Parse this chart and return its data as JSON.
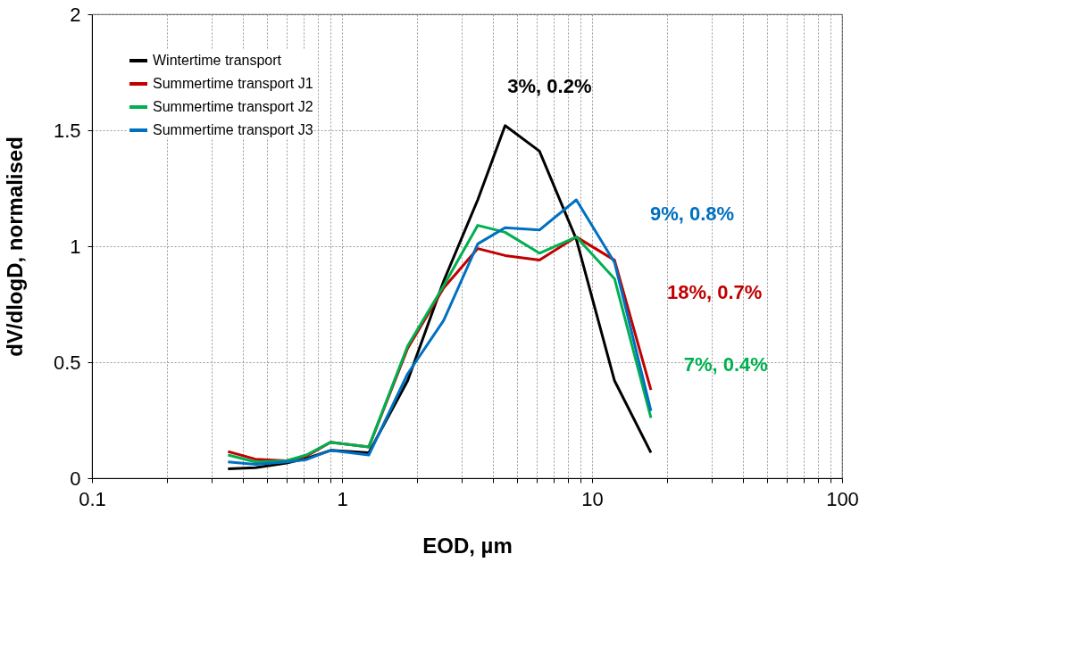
{
  "chart_data": {
    "type": "line",
    "xlabel": "EOD, µm",
    "ylabel": "dV/dlogD,  normalised",
    "log": "x",
    "x": [
      0.35,
      0.45,
      0.6,
      0.72,
      0.9,
      1.28,
      1.83,
      2.55,
      3.49,
      4.49,
      6.16,
      8.65,
      12.3,
      17.2
    ],
    "series": [
      {
        "name": "Wintertime transport",
        "color": "#000000",
        "values": [
          0.04,
          0.045,
          0.065,
          0.085,
          0.12,
          0.11,
          0.42,
          0.85,
          1.2,
          1.52,
          1.41,
          1.03,
          0.42,
          0.11
        ]
      },
      {
        "name": "Summertime transport J1",
        "color": "#c00000",
        "values": [
          0.115,
          0.082,
          0.075,
          0.095,
          0.155,
          0.135,
          0.56,
          0.82,
          0.99,
          0.96,
          0.94,
          1.04,
          0.94,
          0.38
        ]
      },
      {
        "name": "Summertime transport J2",
        "color": "#00b050",
        "values": [
          0.1,
          0.07,
          0.075,
          0.1,
          0.155,
          0.135,
          0.57,
          0.83,
          1.09,
          1.06,
          0.97,
          1.04,
          0.86,
          0.26
        ]
      },
      {
        "name": "Summertime transport J3",
        "color": "#0070c0",
        "values": [
          0.07,
          0.06,
          0.07,
          0.08,
          0.12,
          0.1,
          0.45,
          0.68,
          1.01,
          1.08,
          1.07,
          1.2,
          0.93,
          0.29
        ]
      }
    ],
    "xlim": [
      0.1,
      100
    ],
    "xticks": [
      0.1,
      {
        "value": 0.2,
        "label": null
      },
      {
        "value": 0.3,
        "label": null
      },
      {
        "value": 0.4,
        "label": null
      },
      {
        "value": 0.5,
        "label": null
      },
      {
        "value": 0.6,
        "label": null
      },
      {
        "value": 0.7,
        "label": null
      },
      {
        "value": 0.8,
        "label": null
      },
      {
        "value": 0.9,
        "label": null
      },
      1,
      {
        "value": 2,
        "label": null
      },
      {
        "value": 3,
        "label": null
      },
      {
        "value": 4,
        "label": null
      },
      {
        "value": 5,
        "label": null
      },
      {
        "value": 6,
        "label": null
      },
      {
        "value": 7,
        "label": null
      },
      {
        "value": 8,
        "label": null
      },
      {
        "value": 9,
        "label": null
      },
      10,
      {
        "value": 20,
        "label": null
      },
      {
        "value": 30,
        "label": null
      },
      {
        "value": 40,
        "label": null
      },
      {
        "value": 50,
        "label": null
      },
      {
        "value": 60,
        "label": null
      },
      {
        "value": 70,
        "label": null
      },
      {
        "value": 80,
        "label": null
      },
      {
        "value": 90,
        "label": null
      },
      100
    ],
    "ylim": [
      0,
      2
    ],
    "yticks": [
      0,
      0.5,
      1,
      1.5,
      2
    ],
    "grid": true,
    "legend": "top left",
    "marker": "none",
    "line_style": "solid",
    "annotations": [
      "3%, 0.2%",
      "9%, 0.8%",
      "18%, 0.7%",
      "7%, 0.4%"
    ]
  }
}
